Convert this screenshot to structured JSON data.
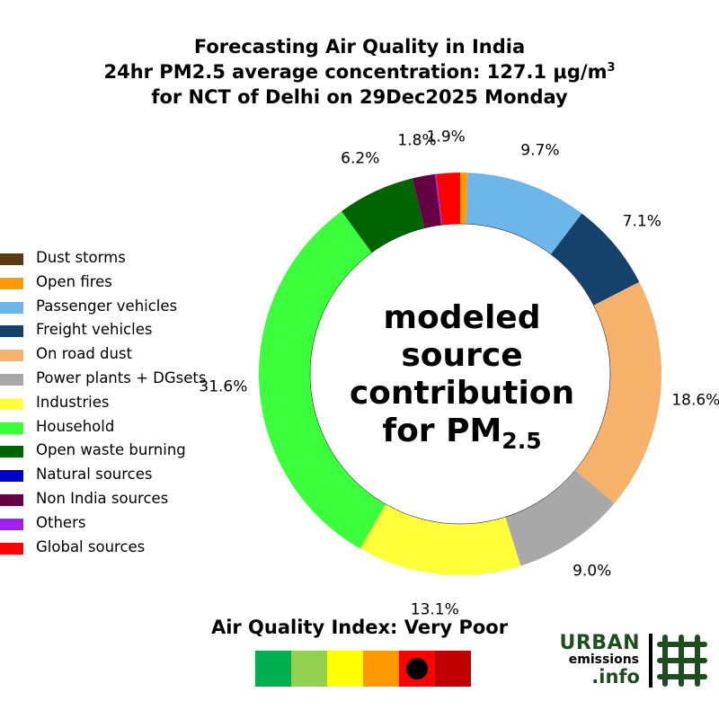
{
  "title": {
    "line1": "Forecasting Air Quality in India",
    "line2_text": "24hr PM2.5 average concentration: 127.1 μg/m",
    "line2_sup": "3",
    "line3": "for NCT of Delhi on 29Dec2025 Monday"
  },
  "center_label": {
    "line1": "modeled",
    "line2": "source",
    "line3": "contribution",
    "line4_text": "for PM",
    "line4_sub": "2.5"
  },
  "chart_data": {
    "type": "pie",
    "style": "donut",
    "start_angle_deg": 90,
    "direction": "clockwise",
    "legend_position": "left",
    "slices": [
      {
        "name": "Dust storms",
        "value": 0.0,
        "label": "",
        "color": "#5a3a12"
      },
      {
        "name": "Open fires",
        "value": 0.6,
        "label": "",
        "color": "#ff9a00"
      },
      {
        "name": "Passenger vehicles",
        "value": 9.7,
        "label": "9.7%",
        "color": "#6cb6ea"
      },
      {
        "name": "Freight vehicles",
        "value": 7.1,
        "label": "7.1%",
        "color": "#15426a"
      },
      {
        "name": "On road dust",
        "value": 18.6,
        "label": "18.6%",
        "color": "#f6b26b"
      },
      {
        "name": "Power plants + DGsets",
        "value": 9.0,
        "label": "9.0%",
        "color": "#a8a8a8"
      },
      {
        "name": "Industries",
        "value": 13.1,
        "label": "13.1%",
        "color": "#ffff3a"
      },
      {
        "name": "Household",
        "value": 31.6,
        "label": "31.6%",
        "color": "#3aff3a"
      },
      {
        "name": "Open waste burning",
        "value": 6.2,
        "label": "6.2%",
        "color": "#006400"
      },
      {
        "name": "Natural sources",
        "value": 0.0,
        "label": "",
        "color": "#0000cc"
      },
      {
        "name": "Non India sources",
        "value": 1.8,
        "label": "1.8%",
        "color": "#660044"
      },
      {
        "name": "Others",
        "value": 0.1,
        "label": "",
        "color": "#a020f0"
      },
      {
        "name": "Global sources",
        "value": 1.9,
        "label": "1.9%",
        "color": "#ff0000"
      }
    ]
  },
  "aqi": {
    "title": "Air Quality Index: Very Poor",
    "colors": [
      "#00b050",
      "#92d050",
      "#ffff00",
      "#ff9900",
      "#ff0000",
      "#c00000"
    ],
    "marker_index": 4
  },
  "logo": {
    "word1": "URBAN",
    "word2": "emissions",
    "word3": ".info",
    "color": "#1e4d1e"
  }
}
